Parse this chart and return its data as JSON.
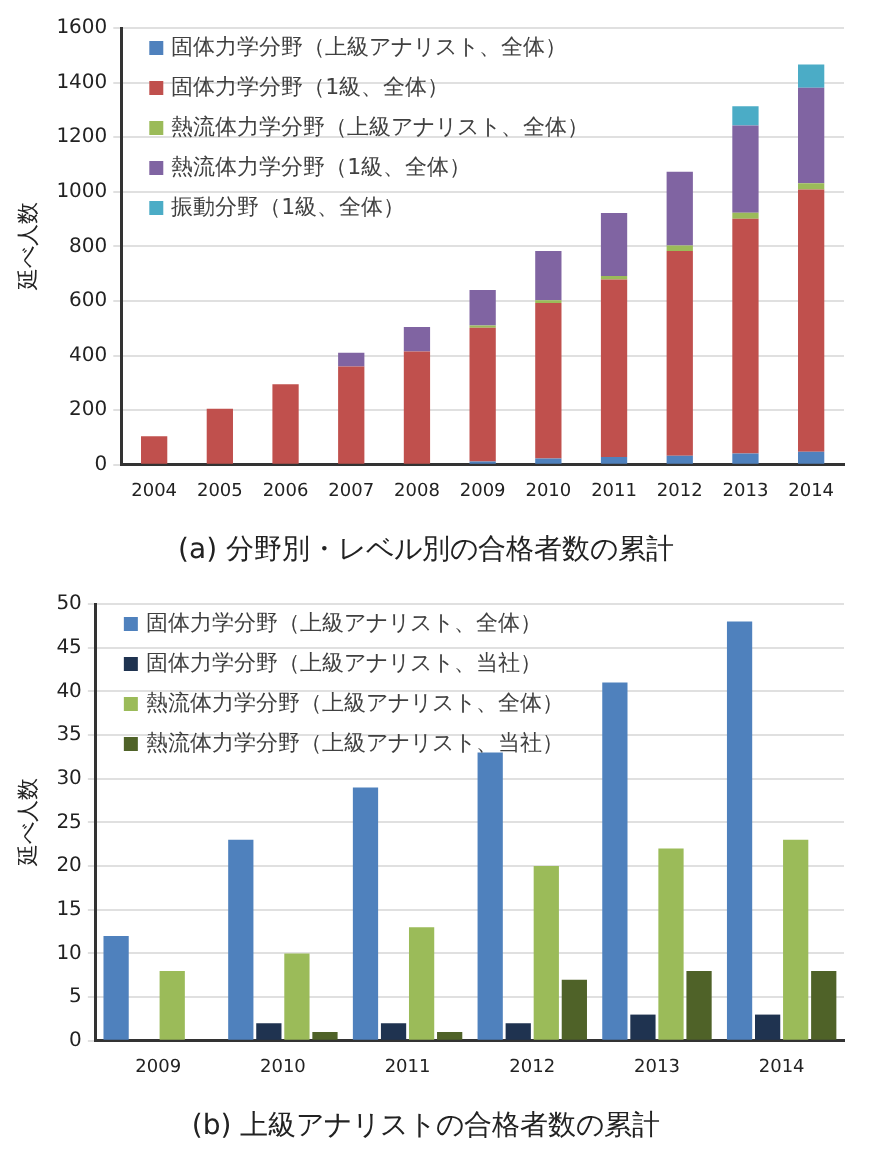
{
  "chart_data": [
    {
      "type": "bar",
      "stacked": true,
      "title": "(a) 分野別・レベル別の合格者数の累計",
      "ylabel": "延べ人数",
      "categories": [
        "2004",
        "2005",
        "2006",
        "2007",
        "2008",
        "2009",
        "2010",
        "2011",
        "2012",
        "2013",
        "2014"
      ],
      "series": [
        {
          "name": "固体力学分野（上級アナリスト、全体）",
          "color": "#4f81bd",
          "values": [
            0,
            0,
            0,
            0,
            0,
            12,
            23,
            29,
            33,
            41,
            48
          ]
        },
        {
          "name": "固体力学分野（1級、全体）",
          "color": "#c0504d",
          "values": [
            105,
            205,
            295,
            360,
            415,
            490,
            570,
            650,
            750,
            860,
            960
          ]
        },
        {
          "name": "熱流体力学分野（上級アナリスト、全体）",
          "color": "#9bbb59",
          "values": [
            0,
            0,
            0,
            0,
            0,
            8,
            10,
            13,
            20,
            22,
            23
          ]
        },
        {
          "name": "熱流体力学分野（1級、全体）",
          "color": "#8064a2",
          "values": [
            0,
            0,
            0,
            50,
            90,
            130,
            180,
            230,
            270,
            320,
            350
          ]
        },
        {
          "name": "振動分野（1級、全体）",
          "color": "#4bacc6",
          "values": [
            0,
            0,
            0,
            0,
            0,
            0,
            0,
            0,
            0,
            70,
            85
          ]
        }
      ],
      "ylim": [
        0,
        1600
      ],
      "yticks": [
        0,
        200,
        400,
        600,
        800,
        1000,
        1200,
        1400,
        1600
      ],
      "grid": "y",
      "legend": "top left"
    },
    {
      "type": "bar",
      "title": "(b) 上級アナリストの合格者数の累計",
      "ylabel": "延べ人数",
      "categories": [
        "2009",
        "2010",
        "2011",
        "2012",
        "2013",
        "2014"
      ],
      "series": [
        {
          "name": "固体力学分野（上級アナリスト、全体）",
          "color": "#4f81bd",
          "values": [
            12,
            23,
            29,
            33,
            41,
            48
          ]
        },
        {
          "name": "固体力学分野（上級アナリスト、当社）",
          "color": "#1f3350",
          "values": [
            0,
            2,
            2,
            2,
            3,
            3
          ]
        },
        {
          "name": "熱流体力学分野（上級アナリスト、全体）",
          "color": "#9bbb59",
          "values": [
            8,
            10,
            13,
            20,
            22,
            23
          ]
        },
        {
          "name": "熱流体力学分野（上級アナリスト、当社）",
          "color": "#4f6228",
          "values": [
            0,
            1,
            1,
            7,
            8,
            8
          ]
        }
      ],
      "ylim": [
        0,
        50
      ],
      "yticks": [
        0,
        5,
        10,
        15,
        20,
        25,
        30,
        35,
        40,
        45,
        50
      ],
      "grid": "y",
      "legend": "top left"
    }
  ]
}
